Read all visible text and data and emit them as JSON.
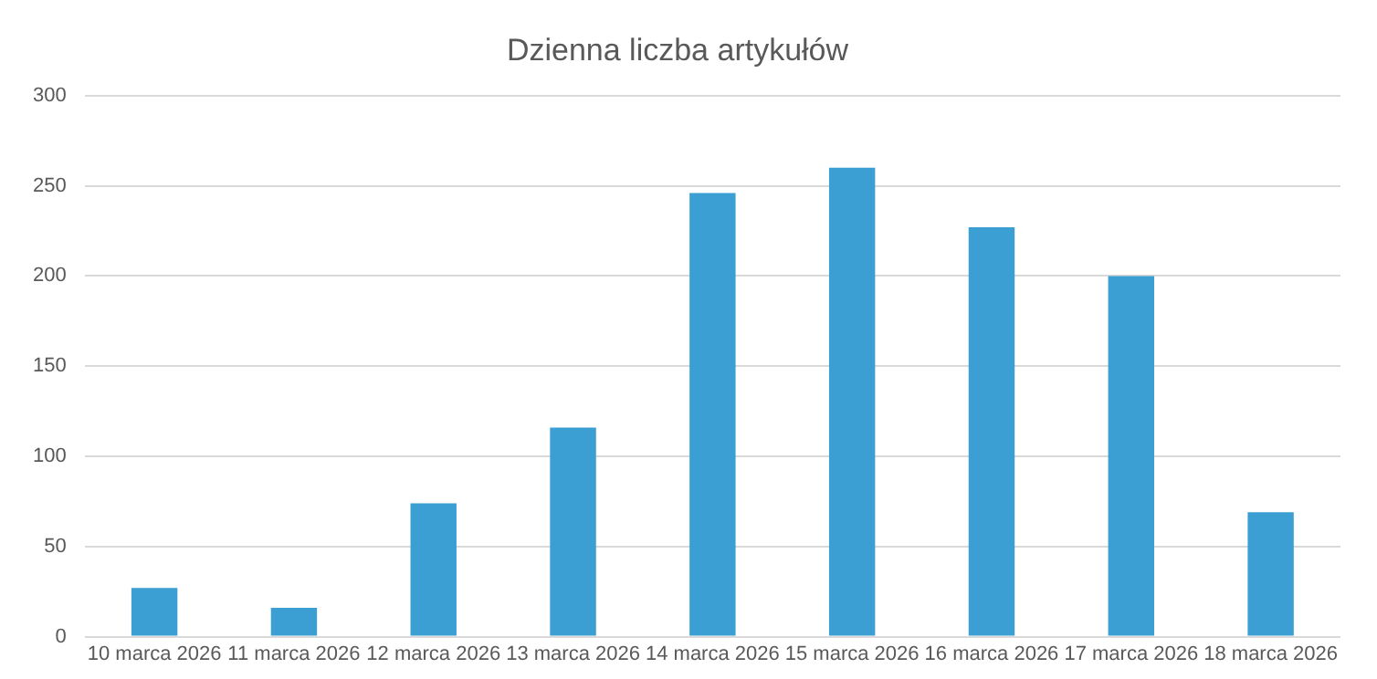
{
  "chart_data": {
    "type": "bar",
    "title": "Dzienna liczba artykułów",
    "categories": [
      "10 marca 2026",
      "11 marca 2026",
      "12 marca 2026",
      "13 marca 2026",
      "14 marca 2026",
      "15 marca 2026",
      "16 marca 2026",
      "17 marca 2026",
      "18 marca 2026"
    ],
    "values": [
      27,
      16,
      74,
      116,
      246,
      260,
      227,
      200,
      69
    ],
    "color": "#3c9fd4",
    "ylim": [
      0,
      300
    ],
    "yticks": [
      0,
      50,
      100,
      150,
      200,
      250,
      300
    ],
    "grid": "y"
  }
}
